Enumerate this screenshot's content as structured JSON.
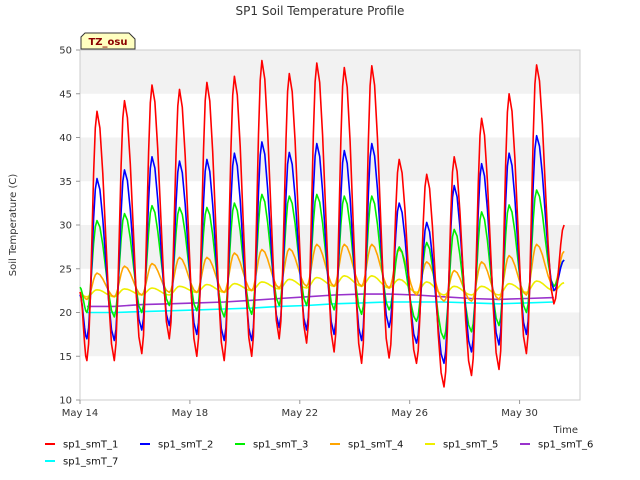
{
  "chart_data": {
    "type": "line",
    "title": "SP1 Soil Temperature Profile",
    "xlabel": "Time",
    "ylabel": "Soil Temperature (C)",
    "ylim": [
      10,
      50
    ],
    "yticks": [
      10,
      15,
      20,
      25,
      30,
      35,
      40,
      45,
      50
    ],
    "xlim_days": [
      0,
      18.2
    ],
    "xticks": [
      {
        "label": "May 14",
        "day": 0
      },
      {
        "label": "May 18",
        "day": 4
      },
      {
        "label": "May 22",
        "day": 8
      },
      {
        "label": "May 26",
        "day": 12
      },
      {
        "label": "May 30",
        "day": 16
      }
    ],
    "grid": "horizontal bands",
    "legend_placement": "bottom",
    "badge": "TZ_osu",
    "series_sampling": "daily min and max, first value at May 14 near 00:00, max near 15:00 and min near 06:00",
    "series": [
      {
        "name": "sp1_smT_1",
        "color": "#ff0000",
        "daily_min": [
          14.5,
          14.5,
          15.3,
          17.0,
          15.0,
          14.5,
          15.0,
          17.0,
          16.5,
          15.5,
          14.2,
          14.8,
          14.2,
          11.5,
          12.8,
          13.5,
          15.3,
          21.0
        ],
        "daily_max": [
          43.0,
          44.2,
          46.0,
          45.5,
          46.3,
          47.0,
          48.8,
          47.3,
          48.5,
          48.0,
          48.2,
          37.5,
          35.8,
          37.8,
          42.2,
          45.0,
          48.3,
          30.0
        ]
      },
      {
        "name": "sp1_smT_2",
        "color": "#0000ff",
        "daily_min": [
          17.0,
          16.8,
          18.0,
          18.5,
          17.5,
          16.8,
          16.8,
          18.3,
          18.0,
          17.5,
          16.8,
          18.3,
          16.5,
          14.2,
          15.5,
          16.3,
          17.5,
          22.5
        ],
        "daily_max": [
          35.3,
          36.3,
          37.8,
          37.3,
          37.5,
          38.2,
          39.5,
          38.3,
          39.3,
          38.5,
          39.3,
          32.5,
          30.3,
          34.5,
          37.0,
          38.2,
          40.2,
          26.0
        ]
      },
      {
        "name": "sp1_smT_3",
        "color": "#00ee00",
        "daily_min": [
          20.0,
          19.5,
          20.0,
          20.8,
          20.2,
          19.5,
          19.8,
          20.8,
          20.8,
          20.3,
          19.8,
          20.3,
          19.0,
          17.0,
          17.8,
          18.5,
          20.0,
          23.0
        ],
        "daily_max": [
          30.5,
          31.3,
          32.2,
          32.0,
          32.0,
          32.5,
          33.5,
          33.3,
          33.5,
          33.3,
          33.3,
          27.5,
          28.0,
          29.5,
          31.5,
          32.3,
          34.0,
          26.0
        ]
      },
      {
        "name": "sp1_smT_4",
        "color": "#ffa500",
        "daily_min": [
          21.5,
          21.8,
          22.0,
          22.3,
          22.3,
          22.3,
          22.5,
          22.8,
          23.0,
          23.0,
          23.0,
          22.8,
          22.0,
          21.3,
          21.3,
          21.5,
          22.0,
          23.0
        ],
        "daily_max": [
          24.5,
          25.3,
          25.6,
          26.3,
          26.3,
          26.8,
          27.2,
          27.3,
          27.8,
          27.8,
          27.8,
          27.2,
          25.8,
          24.8,
          25.8,
          26.5,
          27.8,
          27.0
        ]
      },
      {
        "name": "sp1_smT_5",
        "color": "#eeee00",
        "daily_min": [
          21.8,
          21.8,
          22.0,
          22.0,
          22.3,
          22.3,
          22.5,
          22.7,
          22.8,
          23.0,
          23.0,
          22.8,
          22.3,
          22.0,
          22.0,
          22.0,
          22.3,
          22.5
        ],
        "daily_max": [
          22.6,
          22.7,
          22.8,
          23.0,
          23.2,
          23.3,
          23.5,
          23.8,
          24.0,
          24.2,
          24.2,
          23.8,
          23.5,
          23.0,
          23.0,
          23.3,
          23.6,
          23.4
        ]
      },
      {
        "name": "sp1_smT_6",
        "color": "#9932cc",
        "values_daily": [
          20.7,
          20.7,
          20.9,
          21.0,
          21.1,
          21.2,
          21.4,
          21.6,
          21.8,
          22.0,
          22.1,
          22.1,
          22.0,
          21.8,
          21.6,
          21.5,
          21.6,
          21.7
        ]
      },
      {
        "name": "sp1_smT_7",
        "color": "#00ffff",
        "values_daily": [
          20.0,
          20.0,
          20.1,
          20.2,
          20.3,
          20.4,
          20.5,
          20.7,
          20.8,
          21.0,
          21.1,
          21.2,
          21.2,
          21.2,
          21.1,
          21.0,
          21.1,
          21.2
        ]
      }
    ]
  }
}
